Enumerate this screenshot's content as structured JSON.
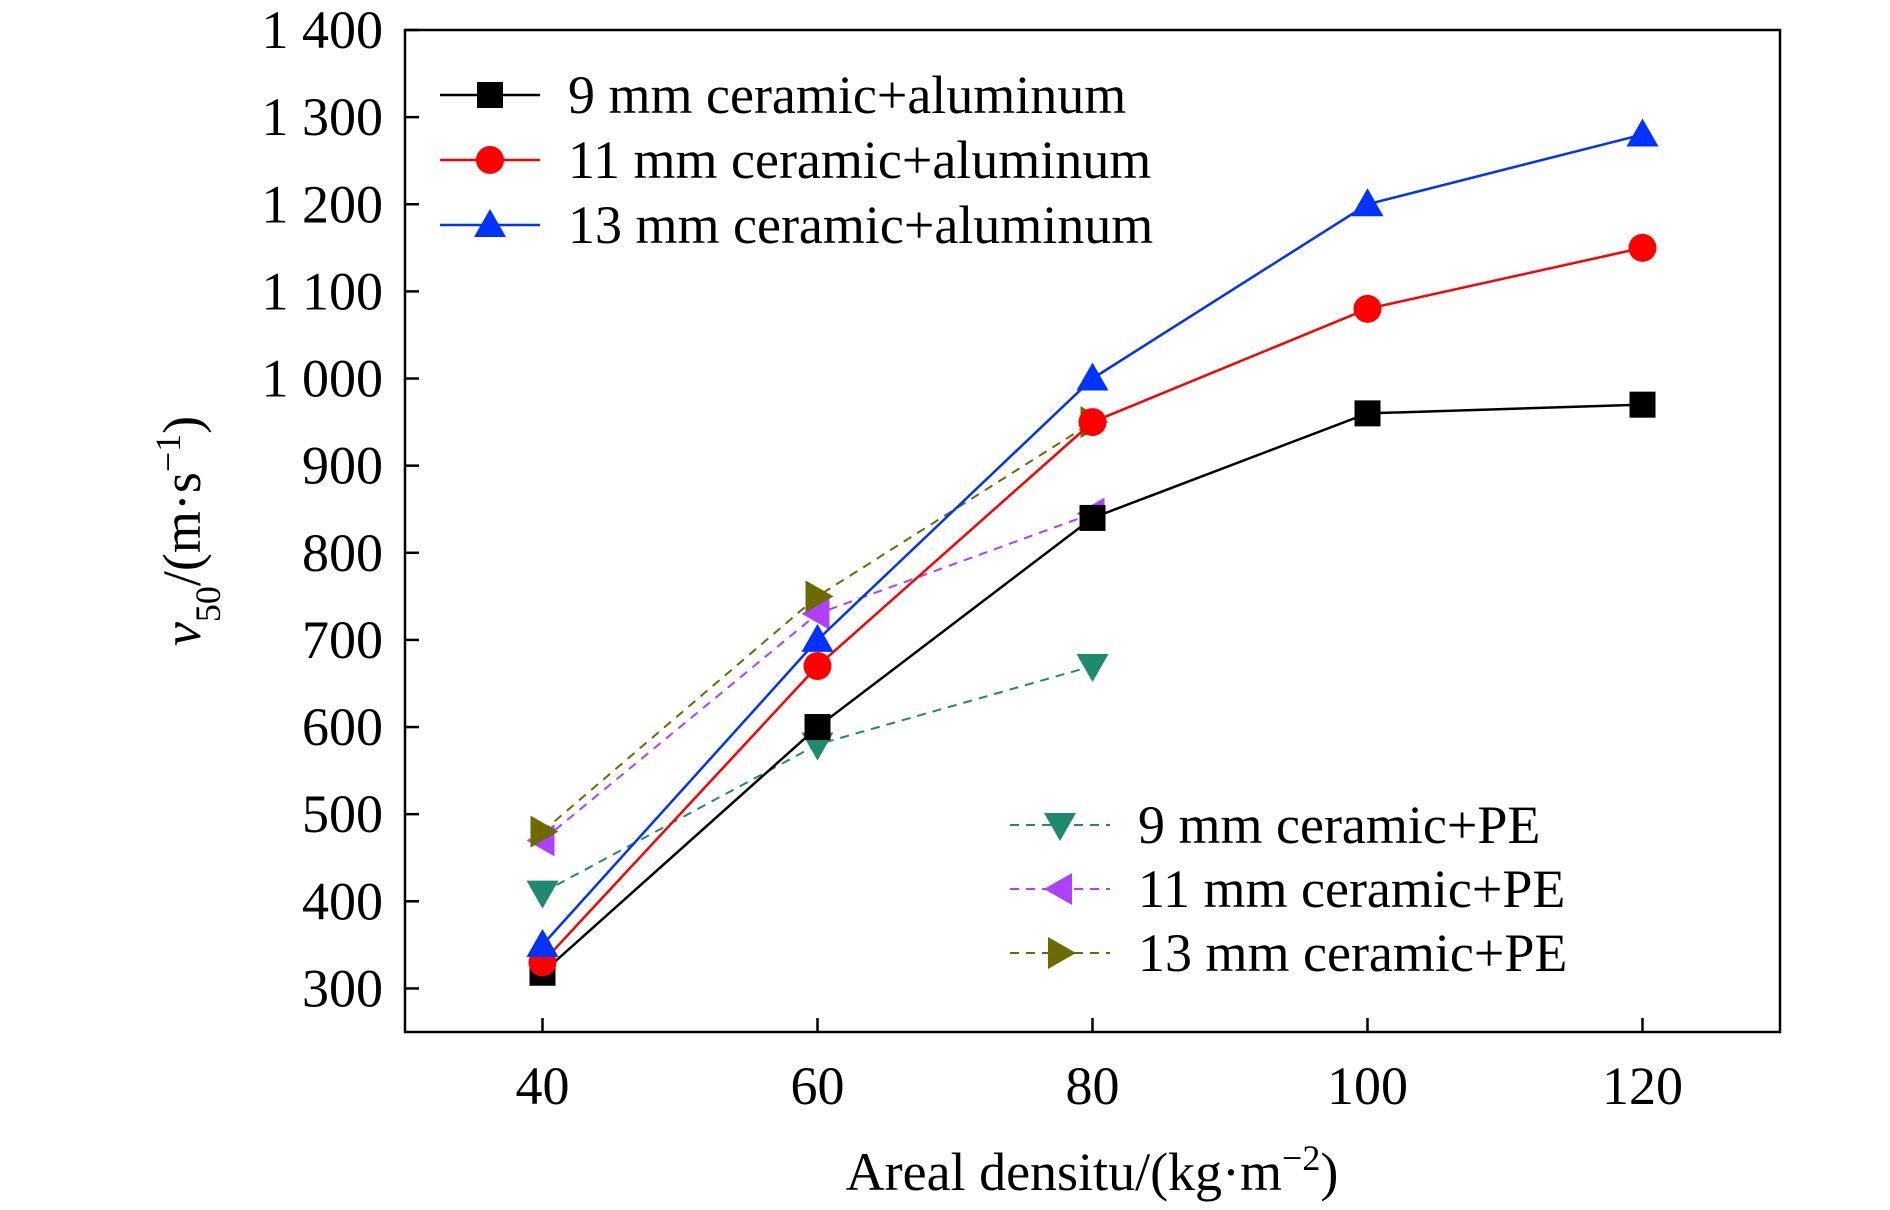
{
  "chart_data": {
    "type": "line",
    "title": "",
    "xlabel": {
      "main": "Areal densitu/(kg·m",
      "sup": "−2",
      "close": ")"
    },
    "ylabel": {
      "var": "v",
      "sub": "50",
      "unit": "/(m·s",
      "sup": "−1",
      "close": ")"
    },
    "xlim": [
      30,
      130
    ],
    "ylim": [
      250,
      1400
    ],
    "x_ticks": [
      40,
      60,
      80,
      100,
      120
    ],
    "x_tick_labels": [
      "40",
      "60",
      "80",
      "100",
      "120"
    ],
    "y_ticks": [
      300,
      400,
      500,
      600,
      700,
      800,
      900,
      1000,
      1100,
      1200,
      1300,
      1400
    ],
    "y_tick_labels": [
      "300",
      "400",
      "500",
      "600",
      "700",
      "800",
      "900",
      "1 000",
      "1 100",
      "1 200",
      "1 300",
      "1 400"
    ],
    "grid": false,
    "legends": [
      {
        "placement": "top-left",
        "series": [
          0,
          1,
          2
        ]
      },
      {
        "placement": "bottom-right",
        "series": [
          3,
          4,
          5
        ]
      }
    ],
    "series": [
      {
        "name": "9 mm ceramic+aluminum",
        "color": "#000000",
        "marker": "square",
        "dash": false,
        "x": [
          40,
          60,
          80,
          100,
          120
        ],
        "y": [
          318,
          600,
          840,
          960,
          970
        ]
      },
      {
        "name": "11 mm ceramic+aluminum",
        "color": "#ff0000",
        "marker": "circle",
        "dash": false,
        "x": [
          40,
          60,
          80,
          100,
          120
        ],
        "y": [
          330,
          670,
          950,
          1080,
          1150
        ]
      },
      {
        "name": "13 mm ceramic+aluminum",
        "color": "#0033ff",
        "marker": "triangle-up",
        "dash": false,
        "x": [
          40,
          60,
          80,
          100,
          120
        ],
        "y": [
          350,
          700,
          1000,
          1200,
          1280
        ]
      },
      {
        "name": "9 mm ceramic+PE",
        "color": "#1f8a70",
        "marker": "triangle-down",
        "dash": true,
        "x": [
          40,
          60,
          80
        ],
        "y": [
          410,
          580,
          670
        ]
      },
      {
        "name": "11 mm ceramic+PE",
        "color": "#b040ff",
        "marker": "triangle-left",
        "dash": true,
        "x": [
          40,
          60,
          80
        ],
        "y": [
          470,
          730,
          845
        ]
      },
      {
        "name": "13 mm ceramic+PE",
        "color": "#6b6b00",
        "marker": "triangle-right",
        "dash": true,
        "x": [
          40,
          60,
          80
        ],
        "y": [
          480,
          750,
          950
        ]
      }
    ]
  }
}
